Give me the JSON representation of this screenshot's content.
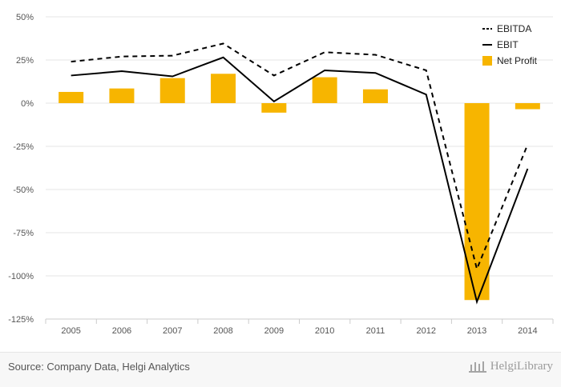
{
  "chart_data": {
    "type": "bar",
    "categories": [
      "2005",
      "2006",
      "2007",
      "2008",
      "2009",
      "2010",
      "2011",
      "2012",
      "2013",
      "2014"
    ],
    "series": [
      {
        "name": "EBITDA",
        "kind": "line",
        "style": "dashed",
        "color": "#000000",
        "values": [
          24,
          27,
          27.5,
          34.5,
          16,
          29.5,
          28,
          19,
          -96,
          -24
        ]
      },
      {
        "name": "EBIT",
        "kind": "line",
        "style": "solid",
        "color": "#000000",
        "values": [
          16,
          18.5,
          15.5,
          26.5,
          1,
          19,
          17.5,
          5,
          -115,
          -38
        ]
      },
      {
        "name": "Net Profit",
        "kind": "bar",
        "color": "#f7b500",
        "values": [
          6.5,
          8.5,
          14.5,
          17,
          -5.5,
          15,
          8,
          0,
          -114,
          -3.5
        ]
      }
    ],
    "yticks": [
      "50%",
      "25%",
      "0%",
      "-25%",
      "-50%",
      "-75%",
      "-100%",
      "-125%"
    ],
    "ytick_values": [
      50,
      25,
      0,
      -25,
      -50,
      -75,
      -100,
      -125
    ],
    "ylim": [
      -125,
      50
    ],
    "legend_position": "top-right",
    "grid": true
  },
  "footer": {
    "source": "Source: Company Data, Helgi Analytics",
    "logo_text": "HelgiLibrary"
  }
}
